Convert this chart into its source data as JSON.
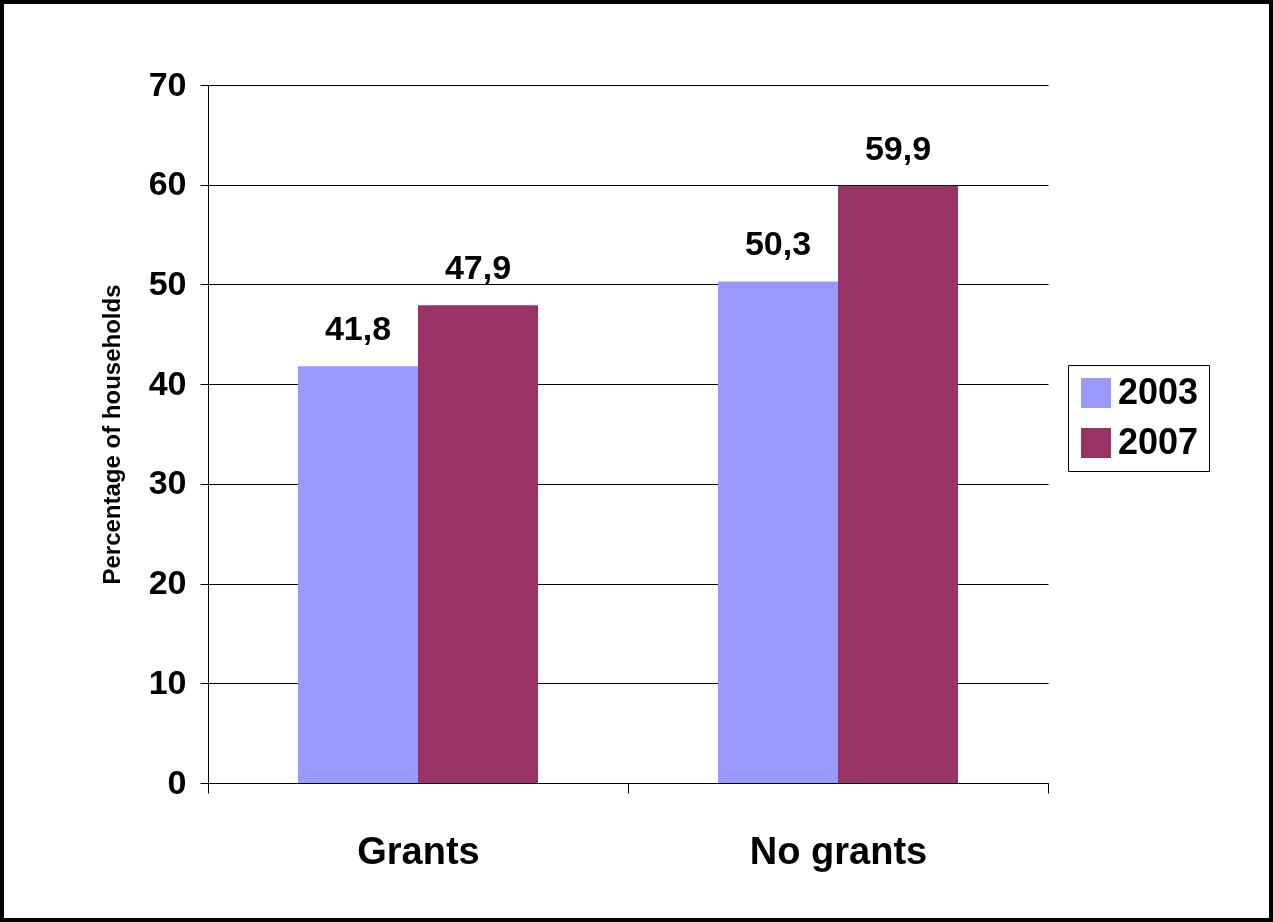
{
  "chart_data": {
    "type": "bar",
    "ylabel": "Percentage of households",
    "categories": [
      "Grants",
      "No grants"
    ],
    "series": [
      {
        "name": "2003",
        "color": "#9999ff",
        "values": [
          41.8,
          50.3
        ],
        "value_labels": [
          "41,8",
          "50,3"
        ]
      },
      {
        "name": "2007",
        "color": "#993366",
        "values": [
          47.9,
          59.9
        ],
        "value_labels": [
          "47,9",
          "59,9"
        ]
      }
    ],
    "ylim": [
      0,
      70
    ],
    "yticks": [
      0,
      10,
      20,
      30,
      40,
      50,
      60,
      70
    ],
    "grid": "y",
    "legend": "right"
  }
}
